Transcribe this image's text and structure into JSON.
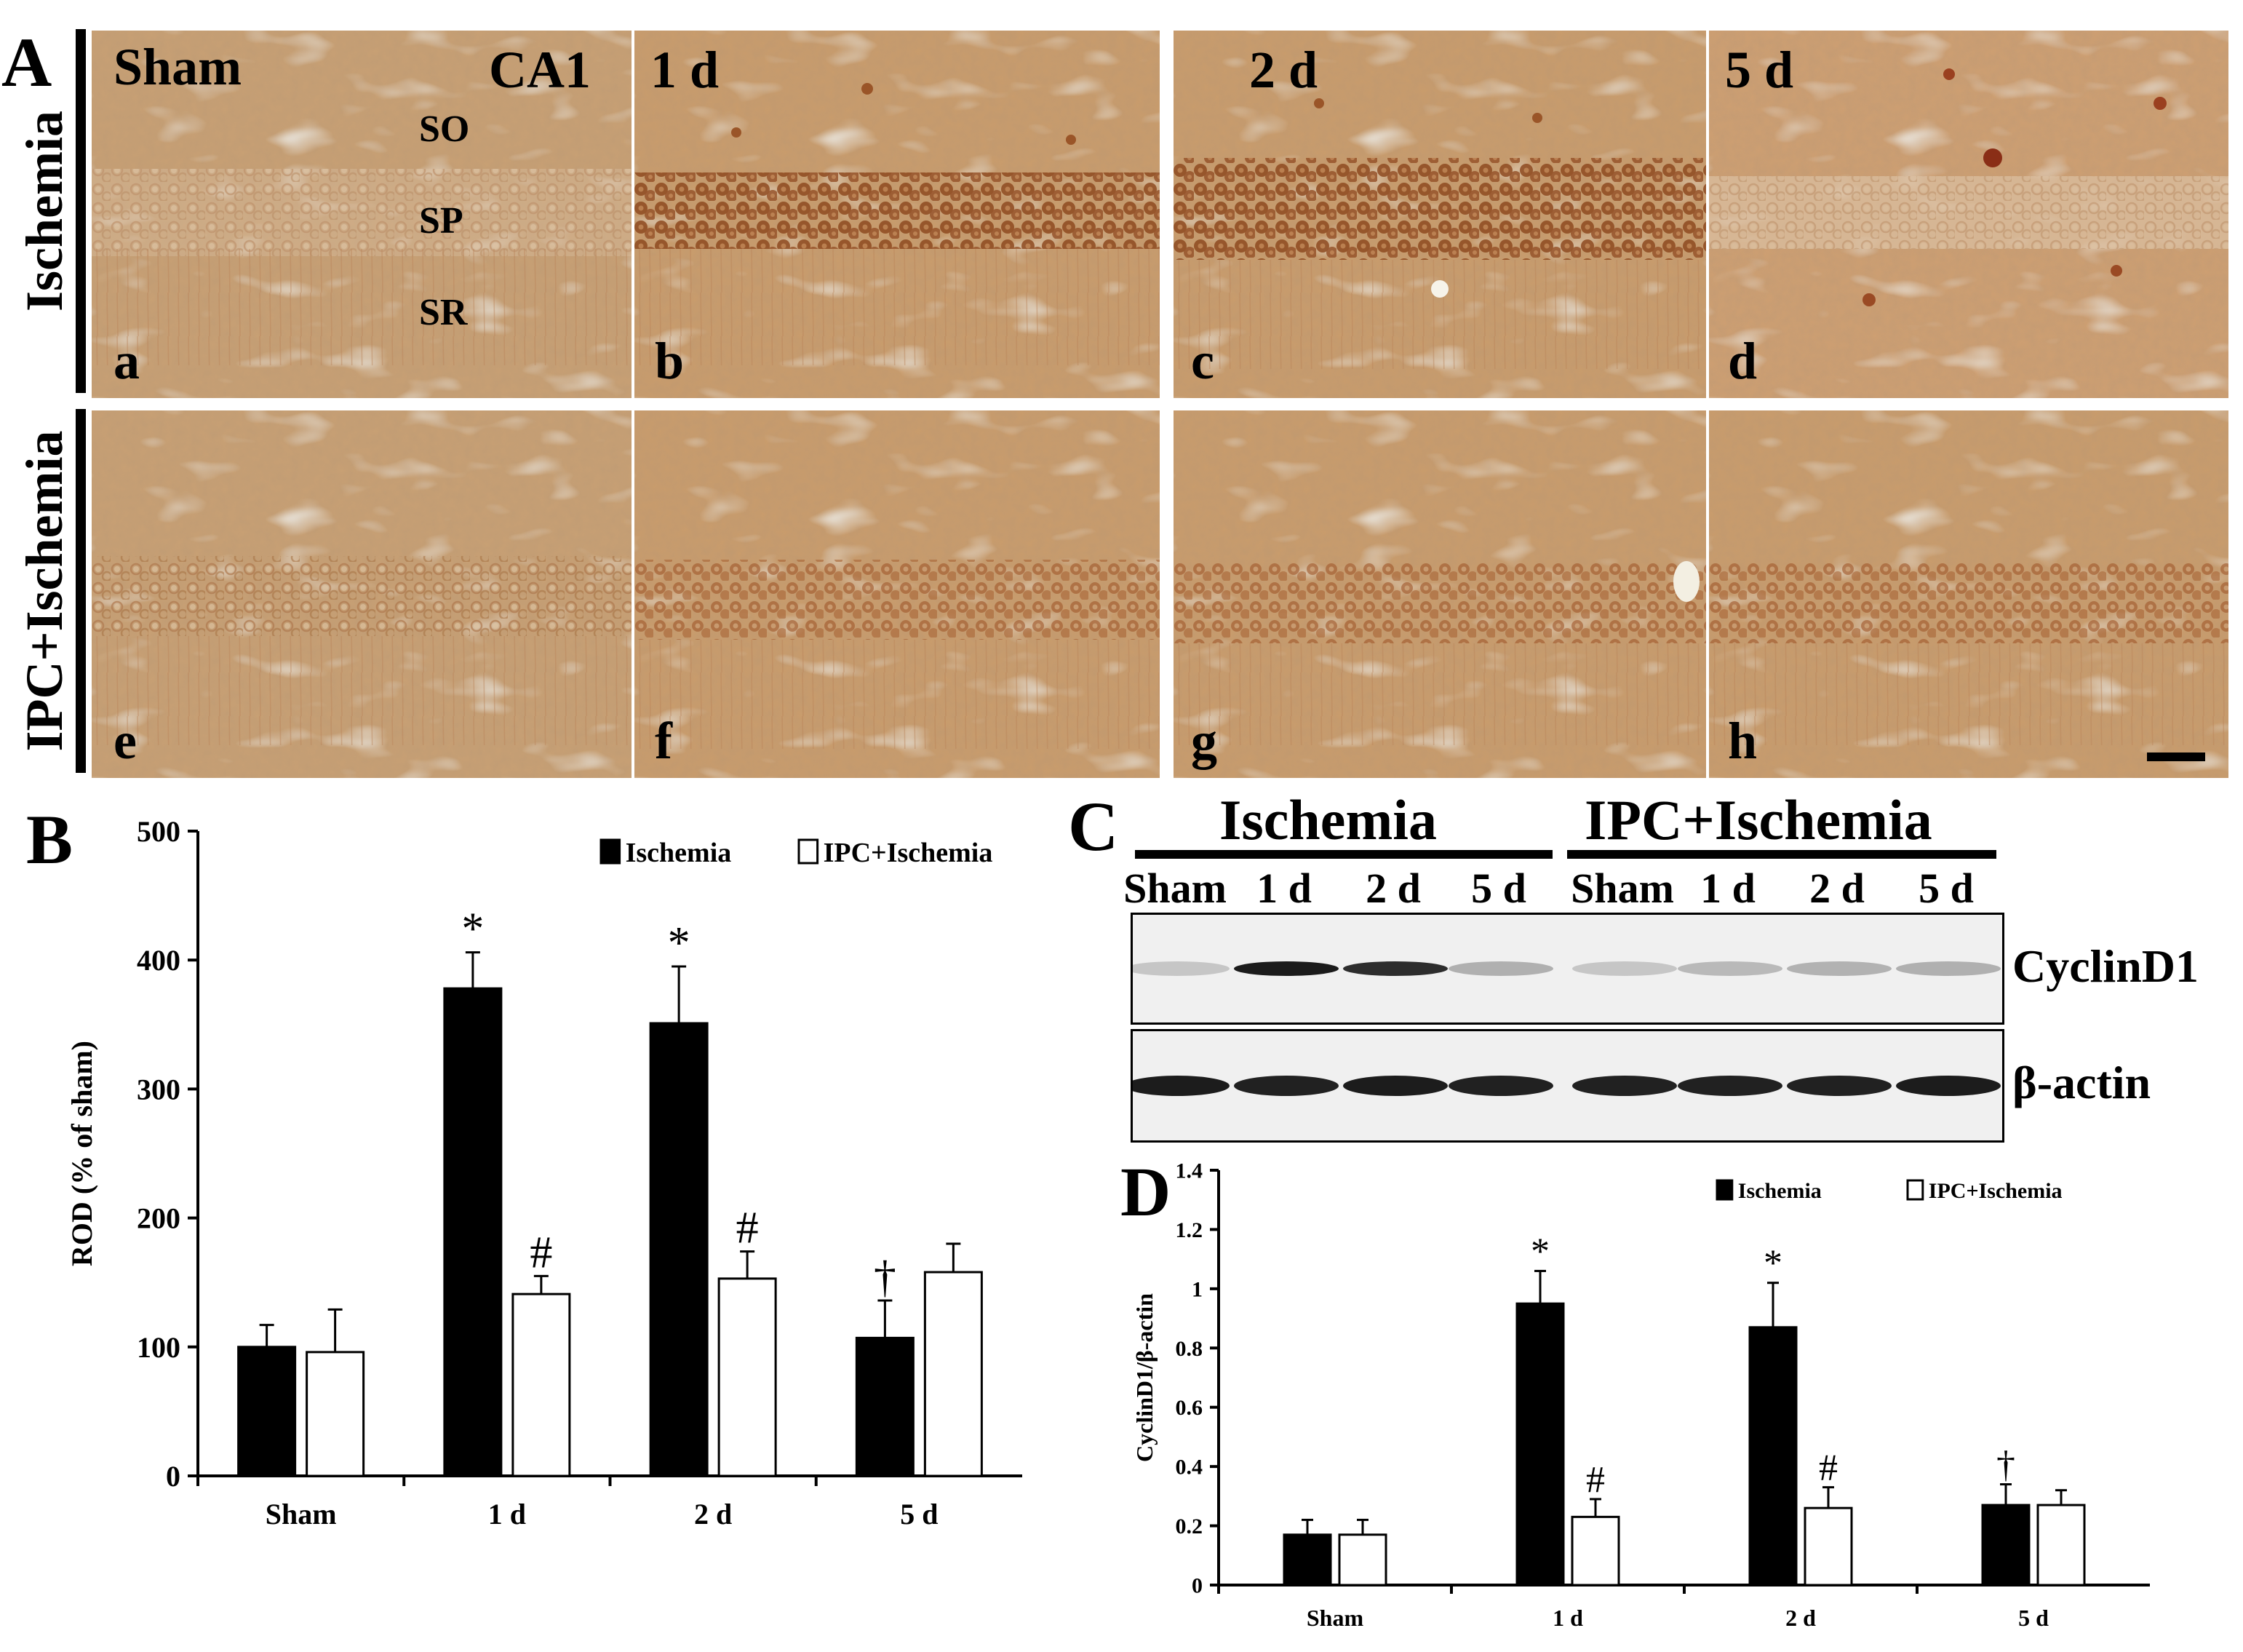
{
  "panelA": {
    "letter": "A",
    "row_labels": [
      "Ischemia",
      "IPC+Ischemia"
    ],
    "top_row": [
      {
        "time": "Sham",
        "region": "CA1",
        "sub": "a"
      },
      {
        "time": "1 d",
        "sub": "b"
      },
      {
        "time": "2 d",
        "sub": "c"
      },
      {
        "time": "5 d",
        "sub": "d"
      }
    ],
    "bottom_row": [
      {
        "sub": "e"
      },
      {
        "sub": "f"
      },
      {
        "sub": "g"
      },
      {
        "sub": "h"
      }
    ],
    "layers": [
      "SO",
      "SP",
      "SR"
    ]
  },
  "panelB": {
    "letter": "B",
    "legend": [
      "Ischemia",
      "IPC+Ischemia"
    ]
  },
  "panelC": {
    "letter": "C",
    "groups": [
      "Ischemia",
      "IPC+Ischemia"
    ],
    "lanes": [
      "Sham",
      "1 d",
      "2 d",
      "5 d",
      "Sham",
      "1 d",
      "2 d",
      "5 d"
    ],
    "proteins": [
      "CyclinD1",
      "β-actin"
    ]
  },
  "panelD": {
    "letter": "D",
    "legend": [
      "Ischemia",
      "IPC+Ischemia"
    ]
  },
  "chart_data": [
    {
      "type": "bar",
      "panel": "B",
      "categories": [
        "Sham",
        "1 d",
        "2 d",
        "5 d"
      ],
      "ylabel": "ROD (% of sham)",
      "xlabel": "",
      "ylim": [
        0,
        500
      ],
      "yticks": [
        0,
        100,
        200,
        300,
        400,
        500
      ],
      "legend_position": "top-right",
      "series": [
        {
          "name": "Ischemia",
          "color": "#000000",
          "values": [
            100,
            378,
            351,
            107
          ],
          "errors": [
            17,
            28,
            44,
            29
          ],
          "markers": [
            "",
            "*",
            "*",
            "†"
          ]
        },
        {
          "name": "IPC+Ischemia",
          "color": "#ffffff",
          "values": [
            96,
            141,
            153,
            158
          ],
          "errors": [
            33,
            14,
            21,
            22
          ],
          "markers": [
            "",
            "#",
            "#",
            ""
          ]
        }
      ]
    },
    {
      "type": "bar",
      "panel": "D",
      "categories": [
        "Sham",
        "1 d",
        "2 d",
        "5 d"
      ],
      "ylabel": "CyclinD1/β-actin",
      "xlabel": "",
      "ylim": [
        0,
        1.4
      ],
      "yticks": [
        "0",
        "0.2",
        "0.4",
        "0.6",
        "0.8",
        "1",
        "1.2",
        "1.4"
      ],
      "legend_position": "top-right",
      "series": [
        {
          "name": "Ischemia",
          "color": "#000000",
          "values": [
            0.17,
            0.95,
            0.87,
            0.27
          ],
          "errors": [
            0.05,
            0.11,
            0.15,
            0.07
          ],
          "markers": [
            "",
            "*",
            "*",
            "†"
          ]
        },
        {
          "name": "IPC+Ischemia",
          "color": "#ffffff",
          "values": [
            0.17,
            0.23,
            0.26,
            0.27
          ],
          "errors": [
            0.05,
            0.06,
            0.07,
            0.05
          ],
          "markers": [
            "",
            "#",
            "#",
            ""
          ]
        }
      ]
    }
  ],
  "colors": {
    "tissue": "#c69a6c",
    "stain": "#8e4a20",
    "blot_bg": "#f1f1f1"
  }
}
